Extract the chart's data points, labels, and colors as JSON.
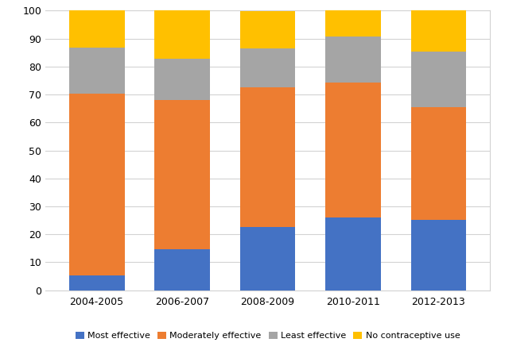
{
  "categories": [
    "2004-2005",
    "2006-2007",
    "2008-2009",
    "2010-2011",
    "2012-2013"
  ],
  "most_effective": [
    5.3,
    14.8,
    22.6,
    26.1,
    25.3
  ],
  "moderately_effective": [
    65.1,
    53.3,
    50.0,
    48.3,
    40.2
  ],
  "least_effective": [
    16.3,
    14.6,
    14.0,
    16.4,
    19.8
  ],
  "no_method": [
    13.3,
    17.3,
    13.3,
    9.2,
    14.7
  ],
  "colors": {
    "most_effective": "#4472C4",
    "moderately_effective": "#ED7D31",
    "least_effective": "#A5A5A5",
    "no_method": "#FFC000"
  },
  "legend_labels": [
    "Most effective",
    "Moderately effective",
    "Least effective",
    "No contraceptive use"
  ],
  "ylim": [
    0,
    100
  ],
  "yticks": [
    0,
    10,
    20,
    30,
    40,
    50,
    60,
    70,
    80,
    90,
    100
  ],
  "background_color": "#FFFFFF",
  "grid_color": "#D3D3D3",
  "bar_width": 0.65
}
